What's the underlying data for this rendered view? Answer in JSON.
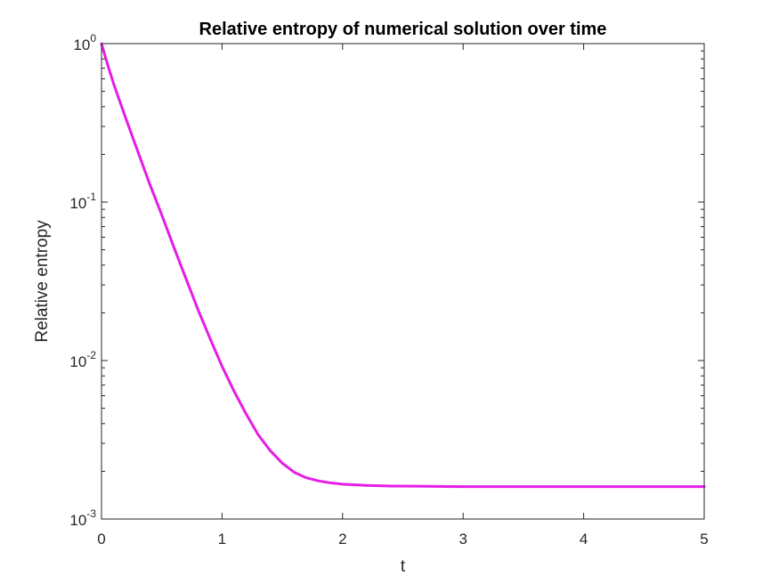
{
  "chart_data": {
    "type": "line",
    "title": "Relative entropy of numerical solution over time",
    "xlabel": "t",
    "ylabel": "Relative entropy",
    "yscale": "log",
    "xlim": [
      0,
      5
    ],
    "ylim": [
      0.001,
      1
    ],
    "x_ticks": [
      0,
      1,
      2,
      3,
      4,
      5
    ],
    "x_tick_labels": [
      "0",
      "1",
      "2",
      "3",
      "4",
      "5"
    ],
    "y_ticks": [
      {
        "value": 1,
        "base": "10",
        "exp": "0"
      },
      {
        "value": 0.1,
        "base": "10",
        "exp": "-1"
      },
      {
        "value": 0.01,
        "base": "10",
        "exp": "-2"
      },
      {
        "value": 0.001,
        "base": "10",
        "exp": "-3"
      }
    ],
    "grid": false,
    "series": [
      {
        "name": "Relative entropy",
        "color": "#E61CE6",
        "x": [
          0,
          0.05,
          0.1,
          0.2,
          0.3,
          0.4,
          0.5,
          0.6,
          0.7,
          0.8,
          0.9,
          1.0,
          1.1,
          1.2,
          1.3,
          1.4,
          1.5,
          1.6,
          1.7,
          1.8,
          1.9,
          2.0,
          2.2,
          2.4,
          2.6,
          2.8,
          3.0,
          3.5,
          4.0,
          4.5,
          5.0
        ],
        "y": [
          1.0,
          0.74,
          0.56,
          0.34,
          0.21,
          0.13,
          0.083,
          0.052,
          0.033,
          0.021,
          0.0138,
          0.0092,
          0.0064,
          0.0046,
          0.0034,
          0.0027,
          0.00225,
          0.00197,
          0.00182,
          0.00174,
          0.00169,
          0.00166,
          0.00163,
          0.001615,
          0.00161,
          0.001605,
          0.0016,
          0.0016,
          0.0016,
          0.0016,
          0.0016
        ]
      }
    ]
  }
}
